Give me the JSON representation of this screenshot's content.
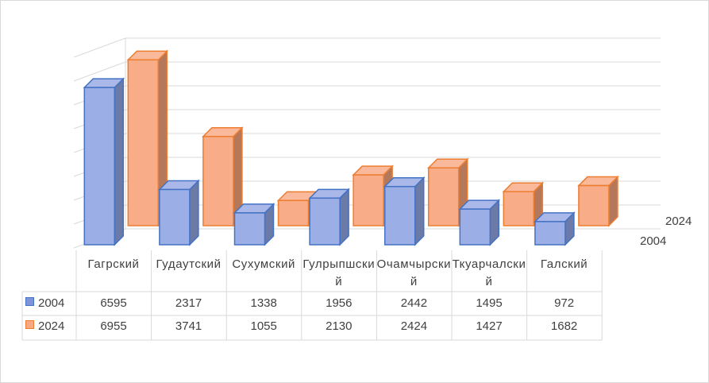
{
  "chart_data": {
    "type": "bar",
    "variant": "3d-clustered-with-data-table",
    "categories": [
      "Гагрский",
      "Гудаутский",
      "Сухумский",
      "Гулрыпшский",
      "Очамчырский",
      "Ткуарчалский",
      "Галский"
    ],
    "series": [
      {
        "name": "2004",
        "values": [
          6595,
          2317,
          1338,
          1956,
          2442,
          1495,
          972
        ],
        "color": "#7f95d6"
      },
      {
        "name": "2024",
        "values": [
          6955,
          3741,
          1055,
          2130,
          2424,
          1427,
          1682
        ],
        "color": "#f8a882"
      }
    ],
    "ylim": [
      0,
      8000
    ],
    "grid": true,
    "data_table": true,
    "legend": "in data table"
  }
}
